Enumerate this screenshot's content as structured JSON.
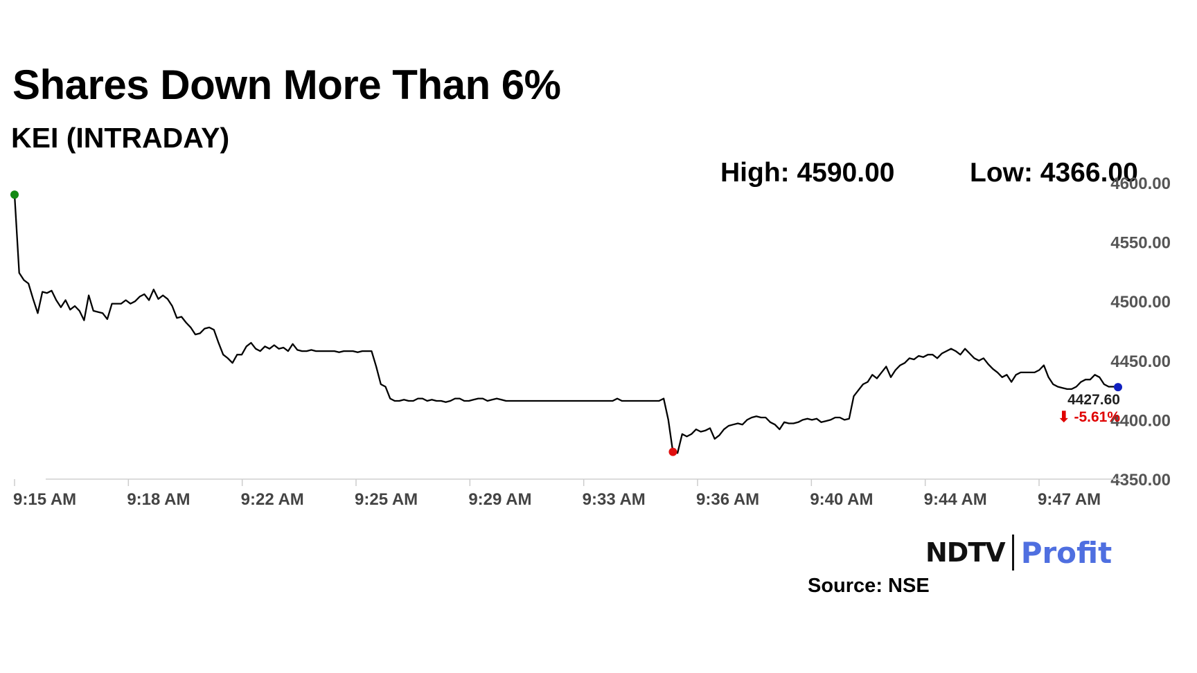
{
  "header": {
    "title": "Shares Down More Than 6%",
    "subtitle": "KEI (INTRADAY)"
  },
  "stats": {
    "high": "High: 4590.00",
    "low": "Low: 4366.00"
  },
  "chart_data": {
    "type": "line",
    "title": "Shares Down More Than 6%",
    "subtitle": "KEI (INTRADAY)",
    "xlabel": "",
    "ylabel": "",
    "ylim": [
      4350,
      4600
    ],
    "y_ticks": [
      "4600.00",
      "4550.00",
      "4500.00",
      "4450.00",
      "4400.00",
      "4350.00"
    ],
    "x_ticks": [
      "9:15 AM",
      "9:18 AM",
      "9:22 AM",
      "9:25 AM",
      "9:29 AM",
      "9:33 AM",
      "9:36 AM",
      "9:40 AM",
      "9:44 AM",
      "9:47 AM"
    ],
    "grid": false,
    "line_color": "#000000",
    "high_color": "#138a13",
    "low_color": "#e01010",
    "last_color": "#1020c0",
    "change_color": "#e00000",
    "last_value": "4427.60",
    "last_change": "-5.61%",
    "high_index": 0,
    "low_index": 142,
    "series": [
      {
        "values": [
          4590,
          4524,
          4518,
          4515,
          4502,
          4490,
          4508,
          4507,
          4509,
          4501,
          4495,
          4501,
          4493,
          4496,
          4492,
          4484,
          4505,
          4492,
          4491,
          4490,
          4485,
          4498,
          4498,
          4498,
          4501,
          4498,
          4500,
          4504,
          4506,
          4501,
          4510,
          4502,
          4505,
          4502,
          4496,
          4486,
          4487,
          4482,
          4478,
          4472,
          4473,
          4477,
          4478,
          4476,
          4465,
          4455,
          4452,
          4448,
          4455,
          4455,
          4462,
          4465,
          4460,
          4458,
          4462,
          4460,
          4463,
          4460,
          4461,
          4458,
          4464,
          4459,
          4458,
          4458,
          4459,
          4458,
          4458,
          4458,
          4458,
          4458,
          4457,
          4458,
          4458,
          4458,
          4457,
          4458,
          4458,
          4458,
          4445,
          4430,
          4428,
          4418,
          4416,
          4416,
          4417,
          4416,
          4416,
          4418,
          4418,
          4416,
          4417,
          4416,
          4416,
          4415,
          4416,
          4418,
          4418,
          4416,
          4416,
          4417,
          4418,
          4418,
          4416,
          4417,
          4418,
          4417,
          4416,
          4416,
          4416,
          4416,
          4416,
          4416,
          4416,
          4416,
          4416,
          4416,
          4416,
          4416,
          4416,
          4416,
          4416,
          4416,
          4416,
          4416,
          4416,
          4416,
          4416,
          4416,
          4416,
          4416,
          4418,
          4416,
          4416,
          4416,
          4416,
          4416,
          4416,
          4416,
          4416,
          4416,
          4418,
          4400,
          4373,
          4372,
          4388,
          4386,
          4388,
          4392,
          4390,
          4391,
          4393,
          4384,
          4387,
          4392,
          4395,
          4396,
          4397,
          4396,
          4400,
          4402,
          4403,
          4402,
          4402,
          4398,
          4396,
          4392,
          4398,
          4397,
          4397,
          4398,
          4400,
          4401,
          4400,
          4401,
          4398,
          4399,
          4400,
          4402,
          4402,
          4400,
          4401,
          4420,
          4425,
          4430,
          4432,
          4438,
          4435,
          4440,
          4445,
          4436,
          4442,
          4446,
          4448,
          4452,
          4451,
          4454,
          4453,
          4455,
          4455,
          4452,
          4456,
          4458,
          4460,
          4458,
          4455,
          4460,
          4456,
          4452,
          4450,
          4452,
          4447,
          4443,
          4440,
          4436,
          4438,
          4432,
          4438,
          4440,
          4440,
          4440,
          4440,
          4442,
          4446,
          4436,
          4430,
          4428,
          4427,
          4426,
          4426,
          4428,
          4432,
          4434,
          4434,
          4438,
          4436,
          4430,
          4428,
          4428,
          4427.6
        ]
      }
    ]
  },
  "footer": {
    "logo_left": "NDTV",
    "logo_right": "Profit",
    "source": "Source: NSE"
  }
}
